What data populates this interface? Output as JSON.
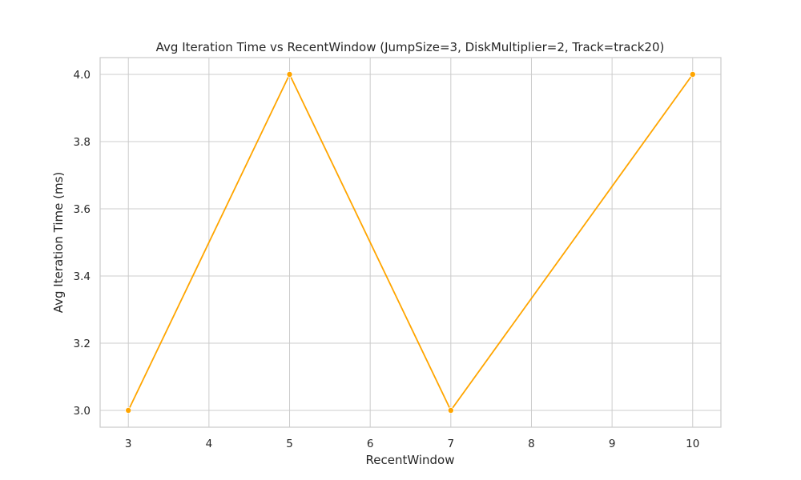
{
  "chart_data": {
    "type": "line",
    "title": "Avg Iteration Time vs RecentWindow (JumpSize=3, DiskMultiplier=2, Track=track20)",
    "xlabel": "RecentWindow",
    "ylabel": "Avg Iteration Time (ms)",
    "x": [
      3,
      5,
      7,
      10
    ],
    "series": [
      {
        "values": [
          3.0,
          4.0,
          3.0,
          4.0
        ],
        "color": "#ffa500",
        "marker": "circle"
      }
    ],
    "xticks": [
      3,
      4,
      5,
      6,
      7,
      8,
      9,
      10
    ],
    "xtick_labels": [
      "3",
      "4",
      "5",
      "6",
      "7",
      "8",
      "9",
      "10"
    ],
    "yticks": [
      3.0,
      3.2,
      3.4,
      3.6,
      3.8,
      4.0
    ],
    "ytick_labels": [
      "3.0",
      "3.2",
      "3.4",
      "3.6",
      "3.8",
      "4.0"
    ],
    "xlim": [
      2.65,
      10.35
    ],
    "ylim": [
      2.95,
      4.05
    ],
    "grid": true,
    "legend": "none"
  }
}
